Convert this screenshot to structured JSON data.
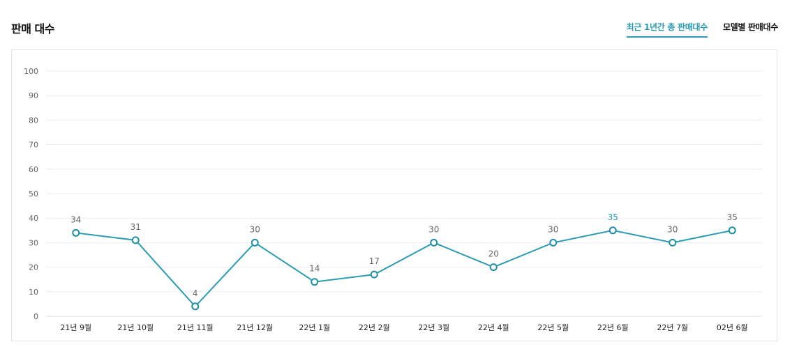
{
  "header": {
    "title": "판매 대수",
    "tabs": [
      {
        "label": "최근 1년간 총 판매대수",
        "active": true
      },
      {
        "label": "모델별 판매대수",
        "active": false
      }
    ]
  },
  "colors": {
    "accent": "#2a9bb0"
  },
  "chart_data": {
    "type": "line",
    "title": "",
    "xlabel": "",
    "ylabel": "",
    "categories": [
      "21년 9월",
      "21년 10월",
      "21년 11월",
      "21년 12월",
      "22년 1월",
      "22년 2월",
      "22년 3월",
      "22년 4월",
      "22년 5월",
      "22년 6월",
      "22년 7월",
      "02년 6월"
    ],
    "values": [
      34,
      31,
      4,
      30,
      14,
      17,
      30,
      20,
      30,
      35,
      30,
      35
    ],
    "highlight_index": 9,
    "yticks": [
      0,
      10,
      20,
      30,
      40,
      50,
      60,
      70,
      80,
      90,
      100
    ],
    "ylim": [
      0,
      100
    ],
    "grid": true,
    "legend": "none"
  }
}
